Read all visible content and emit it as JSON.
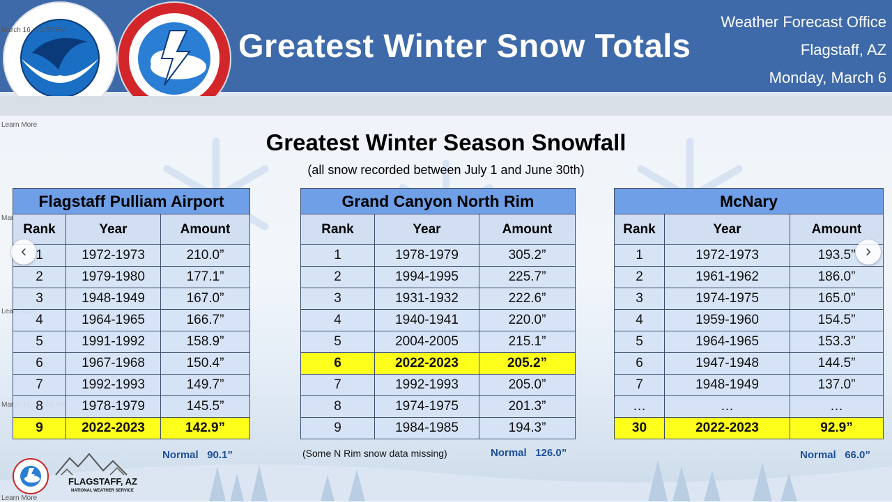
{
  "banner": {
    "title": "Greatest Winter Snow Totals",
    "office_lines": [
      "Weather Forecast Office",
      "Flagstaff, AZ",
      "Monday, March 6"
    ]
  },
  "overlay": {
    "learn_more": "Learn More",
    "date_1": "March 16 at 2:57 PM",
    "date_2": "March 16 at 6:56 AM"
  },
  "main": {
    "title": "Greatest Winter Season Snowfall",
    "subtitle": "(all snow recorded between July 1 and June 30th)"
  },
  "columns": [
    "Rank",
    "Year",
    "Amount"
  ],
  "stations": [
    {
      "name": "Flagstaff Pulliam Airport",
      "rows": [
        {
          "rank": "1",
          "year": "1972-1973",
          "amount": "210.0”"
        },
        {
          "rank": "2",
          "year": "1979-1980",
          "amount": "177.1”"
        },
        {
          "rank": "3",
          "year": "1948-1949",
          "amount": "167.0”"
        },
        {
          "rank": "4",
          "year": "1964-1965",
          "amount": "166.7”"
        },
        {
          "rank": "5",
          "year": "1991-1992",
          "amount": "158.9”"
        },
        {
          "rank": "6",
          "year": "1967-1968",
          "amount": "150.4”"
        },
        {
          "rank": "7",
          "year": "1992-1993",
          "amount": "149.7”"
        },
        {
          "rank": "8",
          "year": "1978-1979",
          "amount": "145.5”"
        },
        {
          "rank": "9",
          "year": "2022-2023",
          "amount": "142.9”",
          "highlight": true
        }
      ],
      "normal_label": "Normal",
      "normal_value": "90.1”",
      "note": ""
    },
    {
      "name": "Grand Canyon North Rim",
      "rows": [
        {
          "rank": "1",
          "year": "1978-1979",
          "amount": "305.2”"
        },
        {
          "rank": "2",
          "year": "1994-1995",
          "amount": "225.7”"
        },
        {
          "rank": "3",
          "year": "1931-1932",
          "amount": "222.6”"
        },
        {
          "rank": "4",
          "year": "1940-1941",
          "amount": "220.0”"
        },
        {
          "rank": "5",
          "year": "2004-2005",
          "amount": "215.1”"
        },
        {
          "rank": "6",
          "year": "2022-2023",
          "amount": "205.2”",
          "highlight": true
        },
        {
          "rank": "7",
          "year": "1992-1993",
          "amount": "205.0”"
        },
        {
          "rank": "8",
          "year": "1974-1975",
          "amount": "201.3”"
        },
        {
          "rank": "9",
          "year": "1984-1985",
          "amount": "194.3”"
        }
      ],
      "normal_label": "Normal",
      "normal_value": "126.0”",
      "note": "(Some N Rim snow data missing)"
    },
    {
      "name": "McNary",
      "rows": [
        {
          "rank": "1",
          "year": "1972-1973",
          "amount": "193.5”"
        },
        {
          "rank": "2",
          "year": "1961-1962",
          "amount": "186.0”"
        },
        {
          "rank": "3",
          "year": "1974-1975",
          "amount": "165.0”"
        },
        {
          "rank": "4",
          "year": "1959-1960",
          "amount": "154.5”"
        },
        {
          "rank": "5",
          "year": "1964-1965",
          "amount": "153.3”"
        },
        {
          "rank": "6",
          "year": "1947-1948",
          "amount": "144.5”"
        },
        {
          "rank": "7",
          "year": "1948-1949",
          "amount": "137.0”"
        },
        {
          "rank": "…",
          "year": "…",
          "amount": "…"
        },
        {
          "rank": "30",
          "year": "2022-2023",
          "amount": "92.9”",
          "highlight": true
        }
      ],
      "normal_label": "Normal",
      "normal_value": "66.0”",
      "note": ""
    }
  ],
  "footer": {
    "city": "FLAGSTAFF, AZ",
    "agency": "NATIONAL WEATHER SERVICE"
  },
  "icons": {
    "prev": "chevron-left-icon",
    "next": "chevron-right-icon"
  },
  "colors": {
    "banner": "#3e6aaa",
    "station_header": "#6f9fe6",
    "table_body": "#d5e2f5",
    "highlight": "#ffff1c",
    "normal_text": "#1e4f9a"
  }
}
